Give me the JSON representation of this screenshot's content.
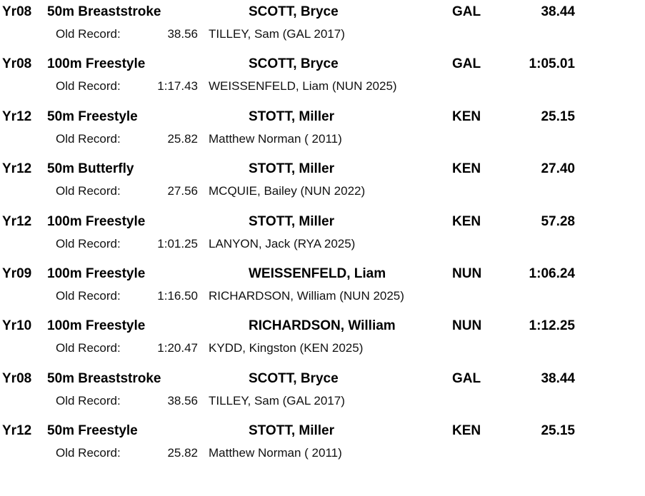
{
  "old_record_label": "Old Record:",
  "records": [
    {
      "group": "Yr08",
      "event": "50m Breaststroke",
      "swimmer": "SCOTT, Bryce",
      "club": "GAL",
      "time": "38.44",
      "old_time": "38.56",
      "old_holder": "TILLEY, Sam (GAL 2017)"
    },
    {
      "group": "Yr08",
      "event": "100m Freestyle",
      "swimmer": "SCOTT, Bryce",
      "club": "GAL",
      "time": "1:05.01",
      "old_time": "1:17.43",
      "old_holder": "WEISSENFELD, Liam (NUN 2025)"
    },
    {
      "group": "Yr12",
      "event": "50m Freestyle",
      "swimmer": "STOTT, Miller",
      "club": "KEN",
      "time": "25.15",
      "old_time": "25.82",
      "old_holder": "Matthew Norman ( 2011)"
    },
    {
      "group": "Yr12",
      "event": "50m Butterfly",
      "swimmer": "STOTT, Miller",
      "club": "KEN",
      "time": "27.40",
      "old_time": "27.56",
      "old_holder": "MCQUIE, Bailey (NUN 2022)"
    },
    {
      "group": "Yr12",
      "event": "100m Freestyle",
      "swimmer": "STOTT, Miller",
      "club": "KEN",
      "time": "57.28",
      "old_time": "1:01.25",
      "old_holder": "LANYON, Jack (RYA 2025)"
    },
    {
      "group": "Yr09",
      "event": "100m Freestyle",
      "swimmer": "WEISSENFELD, Liam",
      "club": "NUN",
      "time": "1:06.24",
      "old_time": "1:16.50",
      "old_holder": "RICHARDSON, William (NUN 2025)"
    },
    {
      "group": "Yr10",
      "event": "100m Freestyle",
      "swimmer": "RICHARDSON, William",
      "club": "NUN",
      "time": "1:12.25",
      "old_time": "1:20.47",
      "old_holder": "KYDD, Kingston (KEN 2025)"
    },
    {
      "group": "Yr08",
      "event": "50m Breaststroke",
      "swimmer": "SCOTT, Bryce",
      "club": "GAL",
      "time": "38.44",
      "old_time": "38.56",
      "old_holder": "TILLEY, Sam (GAL 2017)"
    },
    {
      "group": "Yr12",
      "event": "50m Freestyle",
      "swimmer": "STOTT, Miller",
      "club": "KEN",
      "time": "25.15",
      "old_time": "25.82",
      "old_holder": "Matthew Norman ( 2011)"
    }
  ]
}
